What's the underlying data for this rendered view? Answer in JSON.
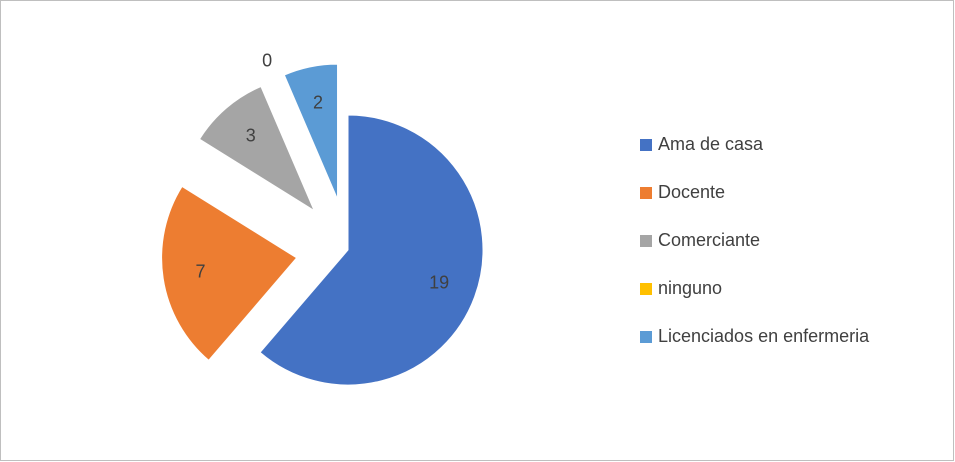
{
  "chart_data": {
    "type": "pie",
    "categories": [
      "Ama de casa",
      "Docente",
      "Comerciante",
      "ninguno",
      "Licenciados en enfermeria"
    ],
    "values": [
      19,
      7,
      3,
      0,
      2
    ],
    "colors": [
      "#4472c4",
      "#ed7d31",
      "#a5a5a5",
      "#ffc000",
      "#5b9bd5"
    ],
    "exploded": true,
    "legend": "right"
  }
}
